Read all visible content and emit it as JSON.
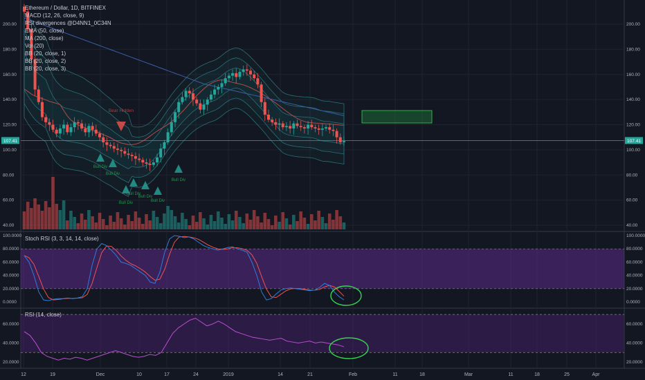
{
  "main_legend": {
    "title": "Ethereum / Dollar, 1D, BITFINEX",
    "indicators": [
      "MACD (12, 26, close, 9)",
      "RSI divergences @D4NN1_0C34N",
      "EMA (50, close)",
      "MA (200, close)",
      "Vol (20)",
      "BB (20, close, 1)",
      "BB (20, close, 2)",
      "BB (20, close, 3)"
    ]
  },
  "price_axis_labels": [
    "200.00",
    "180.00",
    "160.00",
    "140.00",
    "120.00",
    "100.00",
    "80.00",
    "60.00",
    "40.00"
  ],
  "current_price_label": "107.41",
  "stoch_pane": {
    "title": "Stoch RSI (3, 3, 14, 14, close)",
    "axis_labels": [
      "100.0000",
      "80.0000",
      "60.0000",
      "40.0000",
      "20.0000",
      "0.0000"
    ]
  },
  "rsi_pane": {
    "title": "RSI (14, close)",
    "axis_labels": [
      "60.0000",
      "40.0000",
      "20.0000"
    ]
  },
  "time_axis_labels": [
    "12",
    "19",
    "Dec",
    "10",
    "17",
    "24",
    "2019",
    "14",
    "21",
    "Feb",
    "11",
    "18",
    "Mar",
    "11",
    "18",
    "25",
    "Apr"
  ],
  "annotations": {
    "bear_hidden": "Bear Hidden",
    "bull_div": "Bull Div"
  },
  "colors": {
    "background": "#131722",
    "up_candle": "#26a69a",
    "down_candle": "#ef5350",
    "stoch_band": "#5b2a86",
    "rsi_band": "#3d1f5e",
    "rsi_line": "#b94fd1",
    "stoch_k": "#2f7ddb",
    "stoch_d": "#ef5350",
    "highlight_circle": "#39d353",
    "target_box": "#1f7a3a"
  }
}
